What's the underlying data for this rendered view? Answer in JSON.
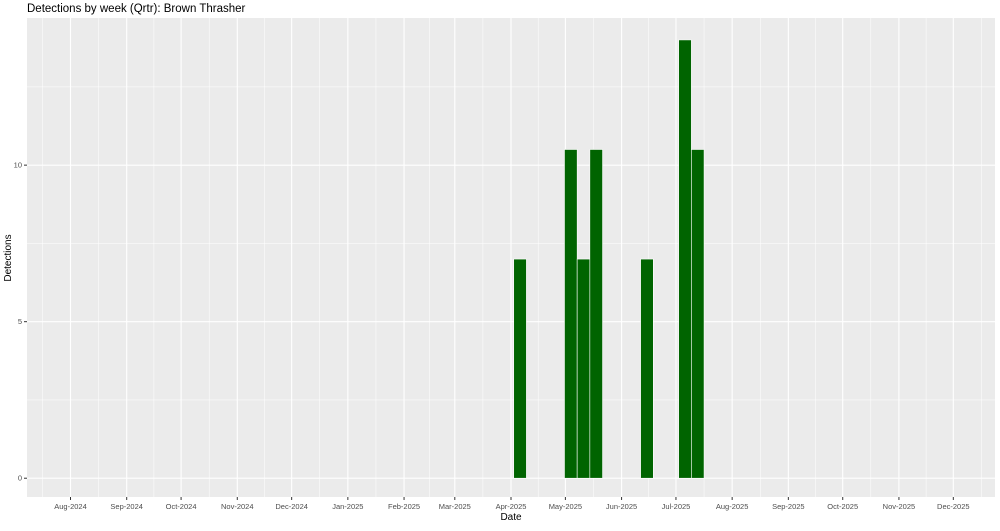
{
  "chart_data": {
    "type": "bar",
    "title": "Detections by week (Qrtr): Brown Thrasher",
    "xlabel": "Date",
    "ylabel": "Detections",
    "xlim": [
      "2024-07-08",
      "2025-12-24"
    ],
    "ylim": [
      -0.6,
      14.7
    ],
    "yticks": [
      0,
      5,
      10
    ],
    "xticks": [
      {
        "date": "2024-08-01",
        "label": "Aug-2024"
      },
      {
        "date": "2024-09-01",
        "label": "Sep-2024"
      },
      {
        "date": "2024-10-01",
        "label": "Oct-2024"
      },
      {
        "date": "2024-11-01",
        "label": "Nov-2024"
      },
      {
        "date": "2024-12-01",
        "label": "Dec-2024"
      },
      {
        "date": "2025-01-01",
        "label": "Jan-2025"
      },
      {
        "date": "2025-02-01",
        "label": "Feb-2025"
      },
      {
        "date": "2025-03-01",
        "label": "Mar-2025"
      },
      {
        "date": "2025-04-01",
        "label": "Apr-2025"
      },
      {
        "date": "2025-05-01",
        "label": "May-2025"
      },
      {
        "date": "2025-06-01",
        "label": "Jun-2025"
      },
      {
        "date": "2025-07-01",
        "label": "Jul-2025"
      },
      {
        "date": "2025-08-01",
        "label": "Aug-2025"
      },
      {
        "date": "2025-09-01",
        "label": "Sep-2025"
      },
      {
        "date": "2025-10-01",
        "label": "Oct-2025"
      },
      {
        "date": "2025-11-01",
        "label": "Nov-2025"
      },
      {
        "date": "2025-12-01",
        "label": "Dec-2025"
      }
    ],
    "bar_width_days": 7,
    "x": [
      "2025-04-06",
      "2025-05-04",
      "2025-05-11",
      "2025-05-18",
      "2025-06-15",
      "2025-07-06",
      "2025-07-13"
    ],
    "values": [
      7,
      10.5,
      7,
      10.5,
      7,
      14,
      10.5
    ],
    "grid": true,
    "colors": {
      "bar": "#006400",
      "bar_outline": "#ffffff",
      "panel": "#ebebeb",
      "grid": "#ffffff"
    }
  }
}
